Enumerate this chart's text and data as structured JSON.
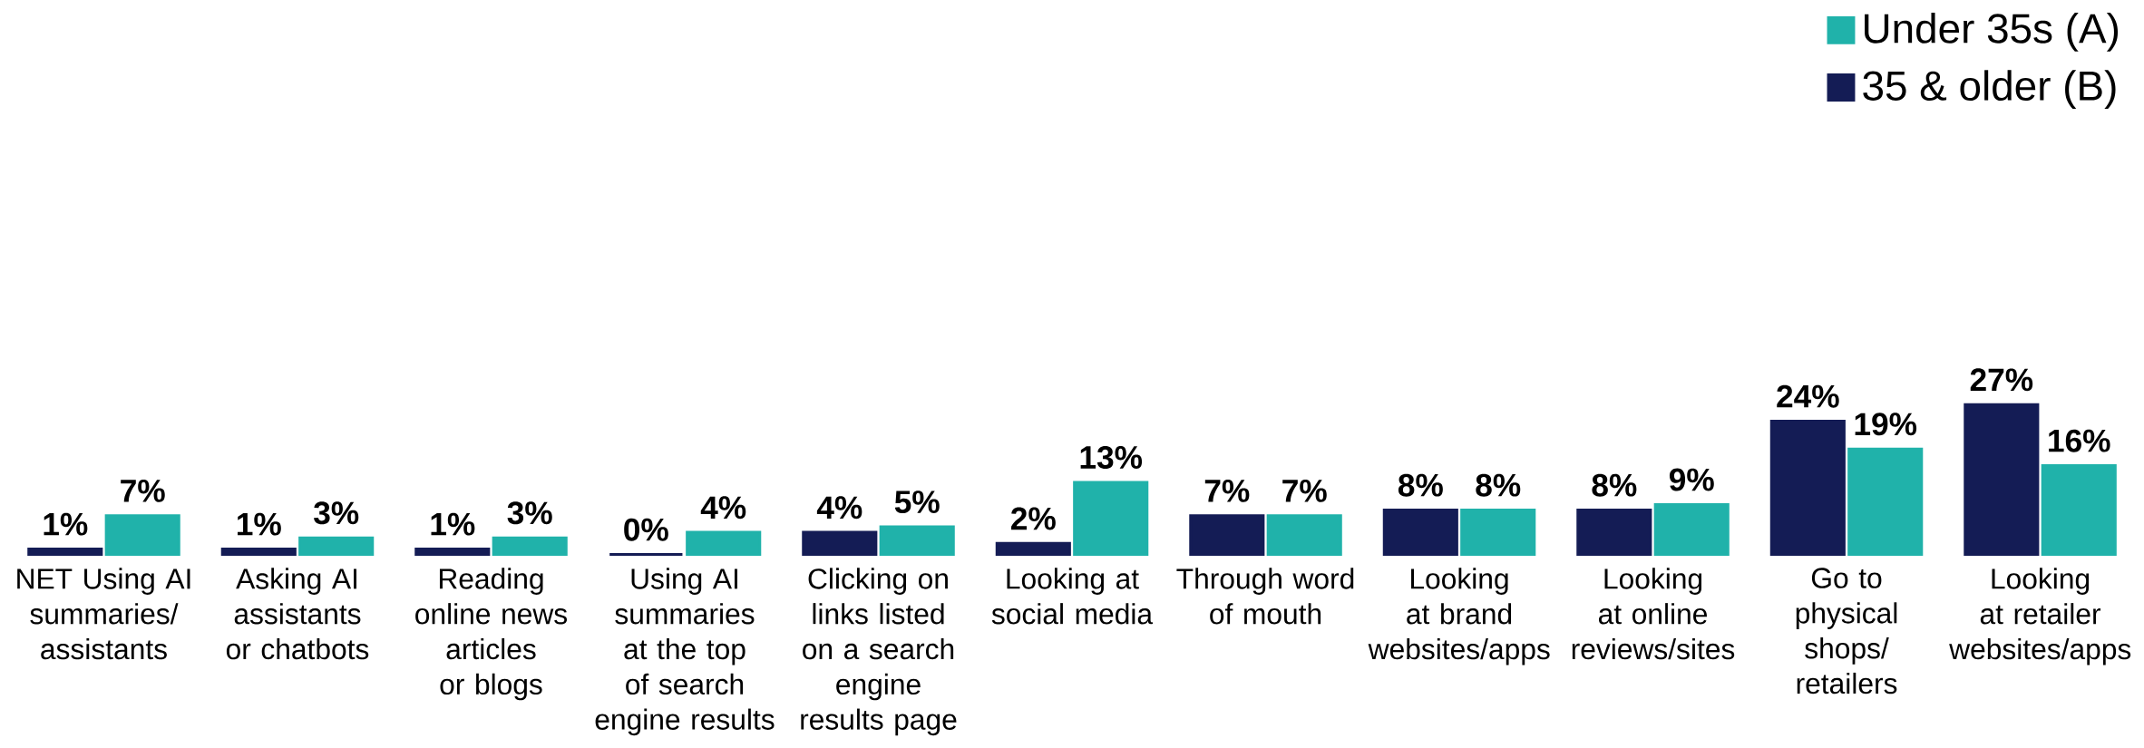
{
  "chart_data": {
    "type": "bar",
    "categories": [
      "NET Using AI summaries/ assistants",
      "Asking AI assistants or chatbots",
      "Reading online news articles or blogs",
      "Using AI summaries at the top of search engine results",
      "Clicking on links listed on a search engine results page",
      "Looking at social media",
      "Through word of mouth",
      "Looking at brand websites/apps",
      "Looking at online reviews/sites",
      "Go to physical shops/ retailers",
      "Looking at retailer websites/apps"
    ],
    "series": [
      {
        "name": "35 & older (B)",
        "color": "#141c55",
        "values": [
          1,
          1,
          1,
          0,
          4,
          2,
          7,
          8,
          8,
          24,
          27
        ],
        "value_labels": [
          "1%",
          "1%",
          "1%",
          "0%",
          "4%",
          "2%",
          "7%",
          "8%",
          "8%",
          "24%",
          "27%"
        ]
      },
      {
        "name": "Under 35s (A)",
        "color": "#20b2aa",
        "values": [
          7,
          3,
          3,
          4,
          5,
          13,
          7,
          8,
          9,
          19,
          16
        ],
        "value_labels": [
          "7%",
          "3%",
          "3%",
          "4%",
          "5%",
          "13%",
          "7%",
          "8%",
          "9%",
          "19%",
          "16%"
        ]
      }
    ],
    "legend": "top right"
  }
}
